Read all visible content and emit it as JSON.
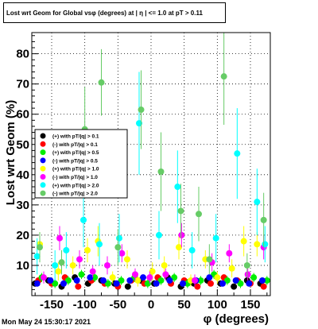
{
  "title": "Lost wrt Geom for Global vsφ (degrees) at | η | <= 1.0 at pT > 0.11",
  "footer_date": "Mon May 24 15:30:17 2021",
  "chart_data": {
    "type": "scatter",
    "xlabel": "φ (degrees)",
    "ylabel": "Lost  wrt  Geom (%)",
    "xlim": [
      -180,
      180
    ],
    "ylim": [
      0,
      87
    ],
    "x_ticks": [
      -150,
      -100,
      -50,
      0,
      50,
      100,
      150
    ],
    "y_ticks": [
      10,
      20,
      30,
      40,
      50,
      60,
      70,
      80
    ],
    "grid": true,
    "legend_position": "left-middle",
    "series": [
      {
        "name": "(+) with pT/|q| > 0.1",
        "color": "#000000",
        "x": [
          -175,
          -155,
          -135,
          -115,
          -95,
          -75,
          -55,
          -35,
          -15,
          5,
          25,
          45,
          65,
          85,
          105,
          125,
          145,
          165
        ],
        "y": [
          4,
          5,
          3,
          6,
          4,
          5,
          4,
          3,
          5,
          4,
          6,
          3,
          4,
          5,
          4,
          3,
          5,
          4
        ],
        "err": [
          1,
          1,
          1,
          1,
          1,
          1,
          1,
          1,
          1,
          1,
          1,
          1,
          1,
          1,
          1,
          1,
          1,
          1
        ]
      },
      {
        "name": "(-) with pT/|q| > 0.1",
        "color": "#ff0000",
        "x": [
          -170,
          -150,
          -130,
          -110,
          -90,
          -70,
          -50,
          -30,
          -10,
          10,
          30,
          50,
          70,
          90,
          110,
          130,
          150,
          170
        ],
        "y": [
          5,
          4,
          6,
          3,
          5,
          4,
          3,
          5,
          4,
          6,
          4,
          5,
          3,
          4,
          6,
          5,
          4,
          3
        ],
        "err": [
          1,
          1,
          1,
          1,
          1,
          1,
          1,
          1,
          1,
          1,
          1,
          1,
          1,
          1,
          1,
          1,
          1,
          1
        ]
      },
      {
        "name": "(+) with pT/|q| > 0.5",
        "color": "#00ee00",
        "x": [
          -165,
          -145,
          -125,
          -105,
          -85,
          -65,
          -45,
          -25,
          -5,
          15,
          35,
          55,
          75,
          95,
          115,
          135,
          155,
          175
        ],
        "y": [
          6,
          4,
          5,
          7,
          6,
          4,
          5,
          6,
          4,
          5,
          6,
          4,
          5,
          7,
          5,
          4,
          6,
          5
        ],
        "err": [
          1.5,
          1.5,
          1.5,
          1.5,
          1.5,
          1.5,
          1.5,
          1.5,
          1.5,
          1.5,
          1.5,
          1.5,
          1.5,
          1.5,
          1.5,
          1.5,
          1.5,
          1.5
        ]
      },
      {
        "name": "(-) with pT/|q| > 0.5",
        "color": "#0000ff",
        "x": [
          -172,
          -152,
          -132,
          -112,
          -92,
          -72,
          -52,
          -32,
          -12,
          8,
          28,
          48,
          68,
          88,
          108,
          128,
          148,
          168
        ],
        "y": [
          4,
          5,
          4,
          5,
          6,
          5,
          4,
          5,
          6,
          4,
          5,
          4,
          5,
          6,
          4,
          5,
          4,
          5
        ],
        "err": [
          1,
          1,
          1,
          1,
          1,
          1,
          1,
          1,
          1,
          1,
          1,
          1,
          1,
          1,
          1,
          1,
          1,
          1
        ]
      },
      {
        "name": "(+) with pT/|q| > 1.0",
        "color": "#ffff00",
        "x": [
          -168,
          -140,
          -118,
          -96,
          -80,
          -58,
          -36,
          -20,
          2,
          20,
          42,
          60,
          82,
          100,
          122,
          140,
          160
        ],
        "y": [
          17,
          8,
          10,
          15,
          18,
          6,
          12,
          5,
          8,
          10,
          16,
          5,
          12,
          6,
          9,
          18,
          17
        ],
        "err": [
          4,
          3,
          3,
          4,
          5,
          2,
          3,
          2,
          3,
          3,
          4,
          2,
          3,
          2,
          3,
          5,
          4
        ]
      },
      {
        "name": "(-) with pT/|q| > 1.0",
        "color": "#ff00ff",
        "x": [
          -162,
          -138,
          -108,
          -88,
          -66,
          -44,
          -24,
          -2,
          22,
          46,
          66,
          92,
          118,
          146,
          170
        ],
        "y": [
          6,
          19,
          12,
          8,
          10,
          14,
          7,
          6,
          7,
          20,
          5,
          11,
          14,
          7,
          16
        ],
        "err": [
          2,
          4,
          3,
          2,
          3,
          3,
          2,
          2,
          2,
          4,
          2,
          3,
          3,
          2,
          4
        ]
      },
      {
        "name": "(+) with pT/|q| > 2.0",
        "color": "#00ffff",
        "x": [
          -172,
          -145,
          -128,
          -102,
          -78,
          -48,
          -18,
          12,
          40,
          62,
          98,
          130,
          160,
          172
        ],
        "y": [
          13,
          10,
          15,
          25,
          17,
          19,
          57,
          20,
          36,
          15,
          19,
          47,
          31,
          17
        ],
        "err": [
          6,
          5,
          6,
          9,
          7,
          8,
          17,
          8,
          12,
          6,
          8,
          15,
          11,
          6
        ],
        "draw_style": "points-with-errors"
      },
      {
        "name": "(-) with pT/|q| > 2.0",
        "color": "#66cc66",
        "x": [
          -168,
          -135,
          -100,
          -75,
          -50,
          -15,
          15,
          45,
          72,
          88,
          110,
          145,
          170
        ],
        "y": [
          16,
          11,
          55,
          70.5,
          16,
          61.5,
          41,
          28,
          27,
          12,
          72.5,
          10,
          25
        ],
        "err": [
          5,
          4,
          14,
          11,
          6,
          13,
          13,
          9,
          9,
          5,
          16,
          4,
          9
        ],
        "draw_style": "points-with-errors"
      }
    ]
  }
}
